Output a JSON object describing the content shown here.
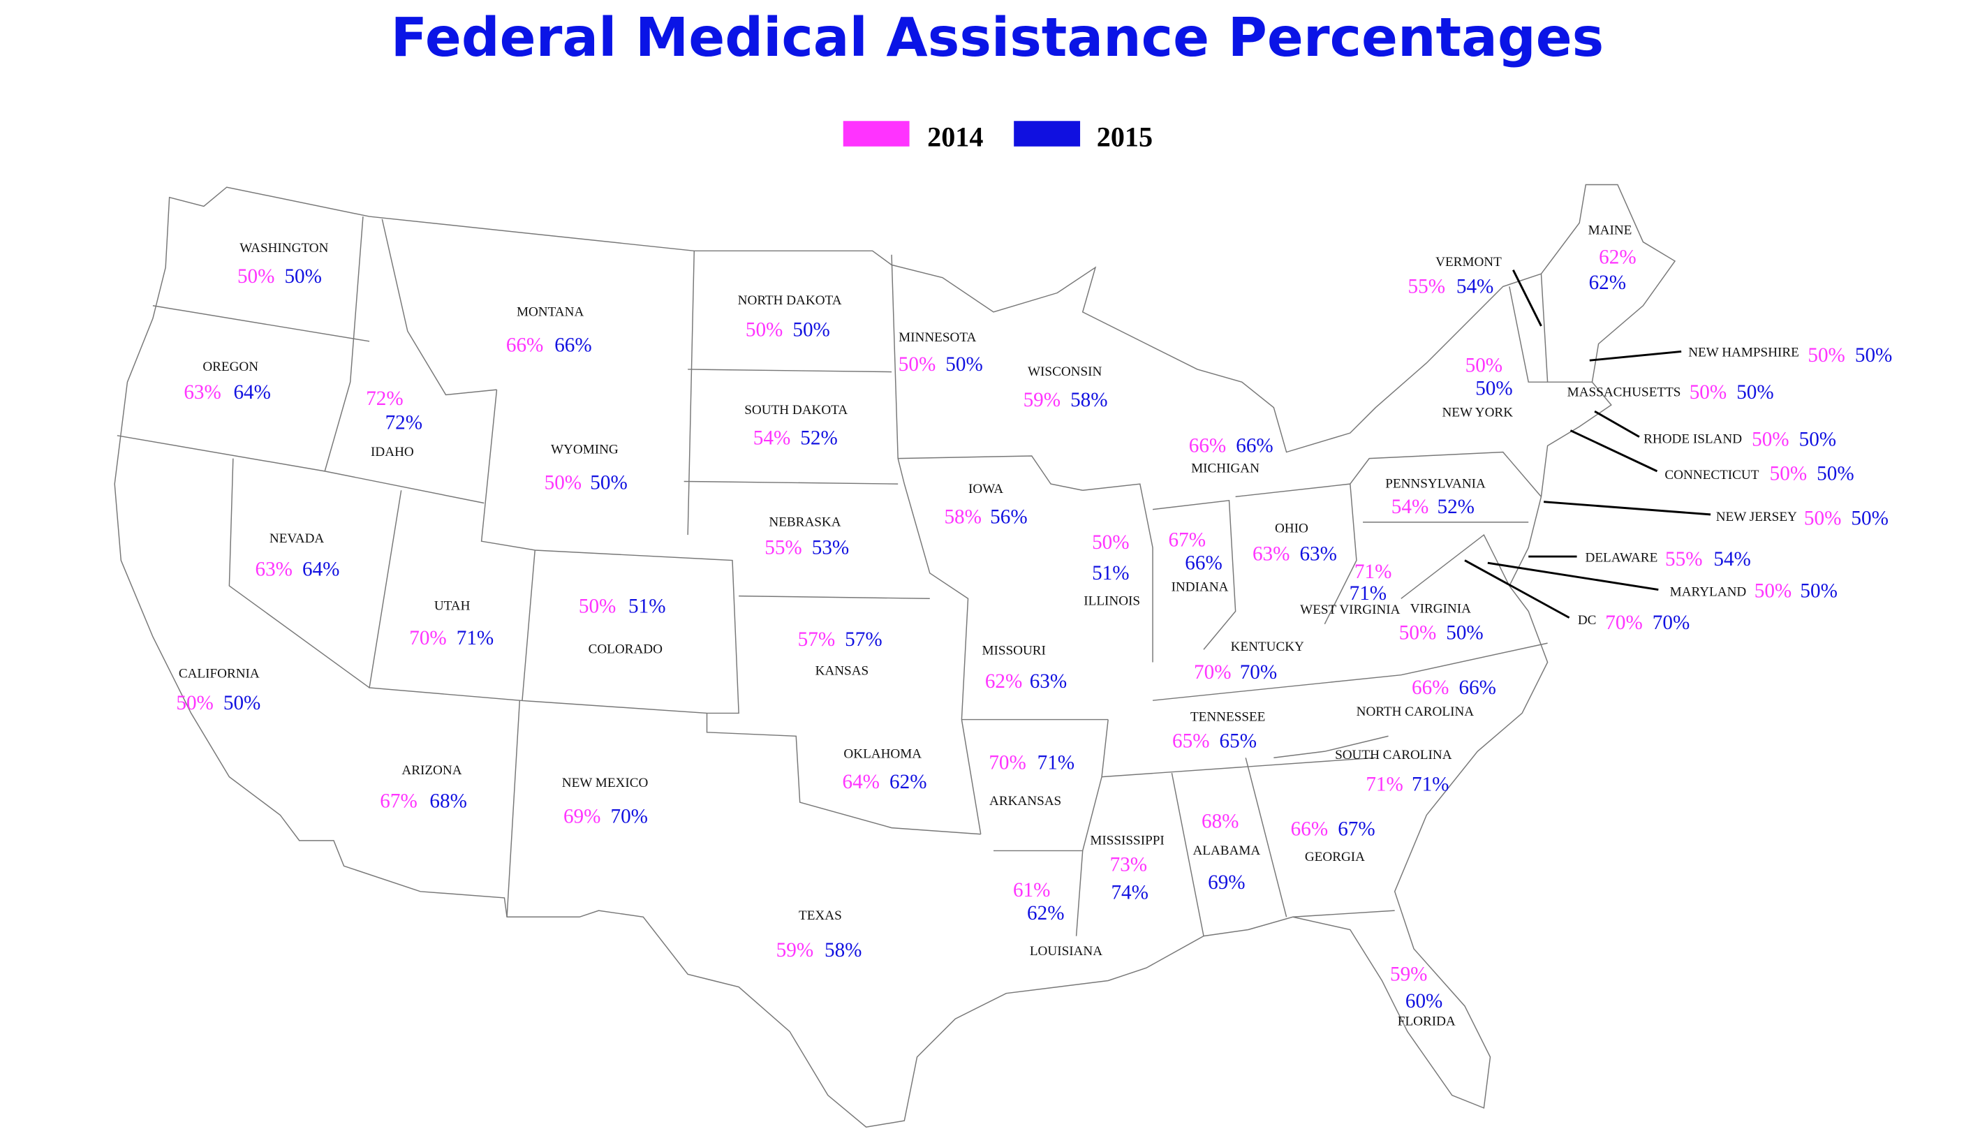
{
  "title": "Federal Medical Assistance Percentages",
  "legend": [
    {
      "label": "2014",
      "color": "#ff33ff"
    },
    {
      "label": "2015",
      "color": "#1010e0"
    }
  ],
  "states": [
    {
      "name": "WASHINGTON",
      "values": [
        "50%",
        "50%"
      ]
    },
    {
      "name": "OREGON",
      "values": [
        "63%",
        "64%"
      ]
    },
    {
      "name": "IDAHO",
      "values": [
        "72%",
        "72%"
      ]
    },
    {
      "name": "MONTANA",
      "values": [
        "66%",
        "66%"
      ]
    },
    {
      "name": "NORTH DAKOTA",
      "values": [
        "50%",
        "50%"
      ]
    },
    {
      "name": "SOUTH DAKOTA",
      "values": [
        "54%",
        "52%"
      ]
    },
    {
      "name": "WYOMING",
      "values": [
        "50%",
        "50%"
      ]
    },
    {
      "name": "NEVADA",
      "values": [
        "63%",
        "64%"
      ]
    },
    {
      "name": "CALIFORNIA",
      "values": [
        "50%",
        "50%"
      ]
    },
    {
      "name": "UTAH",
      "values": [
        "70%",
        "71%"
      ]
    },
    {
      "name": "COLORADO",
      "values": [
        "50%",
        "51%"
      ]
    },
    {
      "name": "ARIZONA",
      "values": [
        "67%",
        "68%"
      ]
    },
    {
      "name": "NEW MEXICO",
      "values": [
        "69%",
        "70%"
      ]
    },
    {
      "name": "NEBRASKA",
      "values": [
        "55%",
        "53%"
      ]
    },
    {
      "name": "KANSAS",
      "values": [
        "57%",
        "57%"
      ]
    },
    {
      "name": "OKLAHOMA",
      "values": [
        "64%",
        "62%"
      ]
    },
    {
      "name": "TEXAS",
      "values": [
        "59%",
        "58%"
      ]
    },
    {
      "name": "MINNESOTA",
      "values": [
        "50%",
        "50%"
      ]
    },
    {
      "name": "IOWA",
      "values": [
        "58%",
        "56%"
      ]
    },
    {
      "name": "MISSOURI",
      "values": [
        "62%",
        "63%"
      ]
    },
    {
      "name": "ARKANSAS",
      "values": [
        "70%",
        "71%"
      ]
    },
    {
      "name": "LOUISIANA",
      "values": [
        "61%",
        "62%"
      ]
    },
    {
      "name": "WISCONSIN",
      "values": [
        "59%",
        "58%"
      ]
    },
    {
      "name": "ILLINOIS",
      "values": [
        "50%",
        "51%"
      ]
    },
    {
      "name": "MICHIGAN",
      "values": [
        "66%",
        "66%"
      ]
    },
    {
      "name": "INDIANA",
      "values": [
        "67%",
        "66%"
      ]
    },
    {
      "name": "OHIO",
      "values": [
        "63%",
        "63%"
      ]
    },
    {
      "name": "KENTUCKY",
      "values": [
        "70%",
        "70%"
      ]
    },
    {
      "name": "TENNESSEE",
      "values": [
        "65%",
        "65%"
      ]
    },
    {
      "name": "MISSISSIPPI",
      "values": [
        "73%",
        "74%"
      ]
    },
    {
      "name": "ALABAMA",
      "values": [
        "68%",
        "69%"
      ]
    },
    {
      "name": "GEORGIA",
      "values": [
        "66%",
        "67%"
      ]
    },
    {
      "name": "FLORIDA",
      "values": [
        "59%",
        "60%"
      ]
    },
    {
      "name": "SOUTH CAROLINA",
      "values": [
        "71%",
        "71%"
      ]
    },
    {
      "name": "NORTH CAROLINA",
      "values": [
        "66%",
        "66%"
      ]
    },
    {
      "name": "VIRGINIA",
      "values": [
        "50%",
        "50%"
      ]
    },
    {
      "name": "WEST VIRGINIA",
      "values": [
        "71%",
        "71%"
      ]
    },
    {
      "name": "PENNSYLVANIA",
      "values": [
        "54%",
        "52%"
      ]
    },
    {
      "name": "NEW YORK",
      "values": [
        "50%",
        "50%"
      ]
    },
    {
      "name": "VERMONT",
      "values": [
        "55%",
        "54%"
      ]
    },
    {
      "name": "MAINE",
      "values": [
        "62%",
        "62%"
      ]
    },
    {
      "name": "NEW HAMPSHIRE",
      "values": [
        "50%",
        "50%"
      ]
    },
    {
      "name": "MASSACHUSETTS",
      "values": [
        "50%",
        "50%"
      ]
    },
    {
      "name": "RHODE ISLAND",
      "values": [
        "50%",
        "50%"
      ]
    },
    {
      "name": "CONNECTICUT",
      "values": [
        "50%",
        "50%"
      ]
    },
    {
      "name": "NEW JERSEY",
      "values": [
        "50%",
        "50%"
      ]
    },
    {
      "name": "DELAWARE",
      "values": [
        "55%",
        "54%"
      ]
    },
    {
      "name": "MARYLAND",
      "values": [
        "50%",
        "50%"
      ]
    },
    {
      "name": "DC",
      "values": [
        "70%",
        "70%"
      ]
    }
  ]
}
